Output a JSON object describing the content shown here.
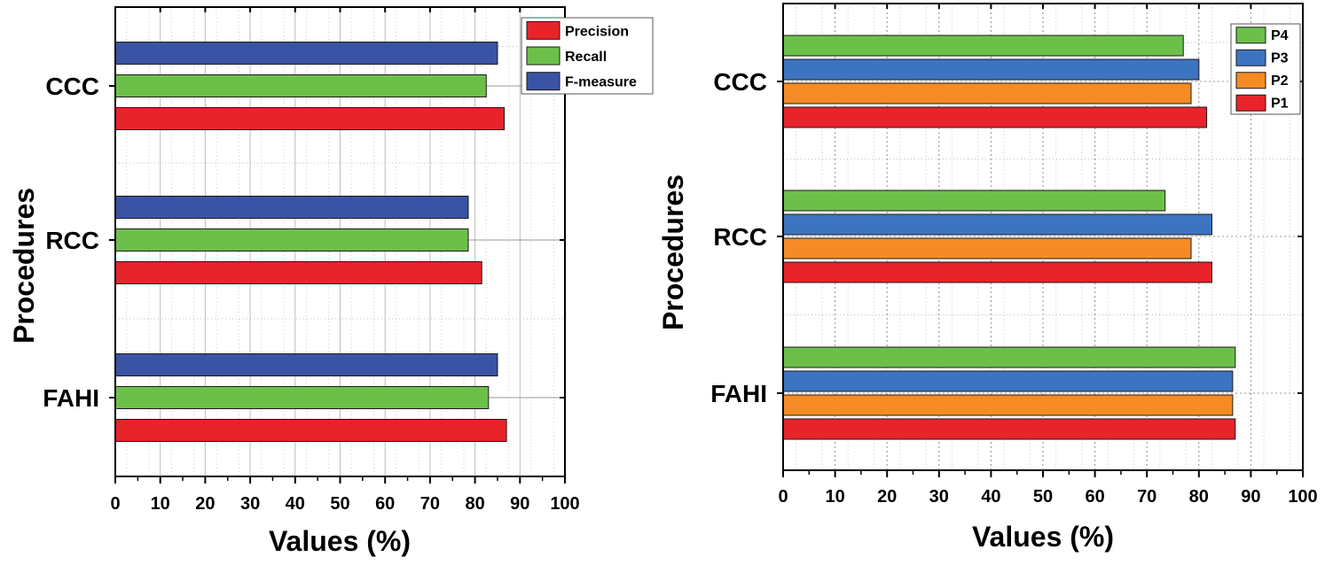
{
  "chart_data": [
    {
      "type": "bar",
      "orientation": "horizontal",
      "ylabel": "Procedures",
      "xlabel": "Values (%)",
      "xlim": [
        0,
        100
      ],
      "xticks": [
        "0",
        "10",
        "20",
        "30",
        "40",
        "50",
        "60",
        "70",
        "80",
        "90",
        "100"
      ],
      "categories": [
        "CCC",
        "RCC",
        "FAHI"
      ],
      "series": [
        {
          "name": "Precision",
          "color": "#e8232a",
          "values": [
            86.5,
            81.5,
            87
          ]
        },
        {
          "name": "Recall",
          "color": "#6cc04a",
          "values": [
            82.5,
            78.5,
            83
          ]
        },
        {
          "name": "F-measure",
          "color": "#3a53a4",
          "values": [
            85,
            78.5,
            85
          ]
        }
      ],
      "legend": [
        "Precision",
        "Recall",
        "F-measure"
      ],
      "legend_position": "top-right",
      "grid": true
    },
    {
      "type": "bar",
      "orientation": "horizontal",
      "ylabel": "Procedures",
      "xlabel": "Values (%)",
      "xlim": [
        0,
        100
      ],
      "xticks": [
        "0",
        "10",
        "20",
        "30",
        "40",
        "50",
        "60",
        "70",
        "80",
        "90",
        "100"
      ],
      "categories": [
        "CCC",
        "RCC",
        "FAHI"
      ],
      "series": [
        {
          "name": "P1",
          "color": "#e8232a",
          "values": [
            81.5,
            82.5,
            87
          ]
        },
        {
          "name": "P2",
          "color": "#f58b25",
          "values": [
            78.5,
            78.5,
            86.5
          ]
        },
        {
          "name": "P3",
          "color": "#3d74c0",
          "values": [
            80,
            82.5,
            86.5
          ]
        },
        {
          "name": "P4",
          "color": "#6cc04a",
          "values": [
            77,
            73.5,
            87
          ]
        }
      ],
      "legend": [
        "P4",
        "P3",
        "P2",
        "P1"
      ],
      "legend_position": "top-right",
      "grid": true
    }
  ]
}
